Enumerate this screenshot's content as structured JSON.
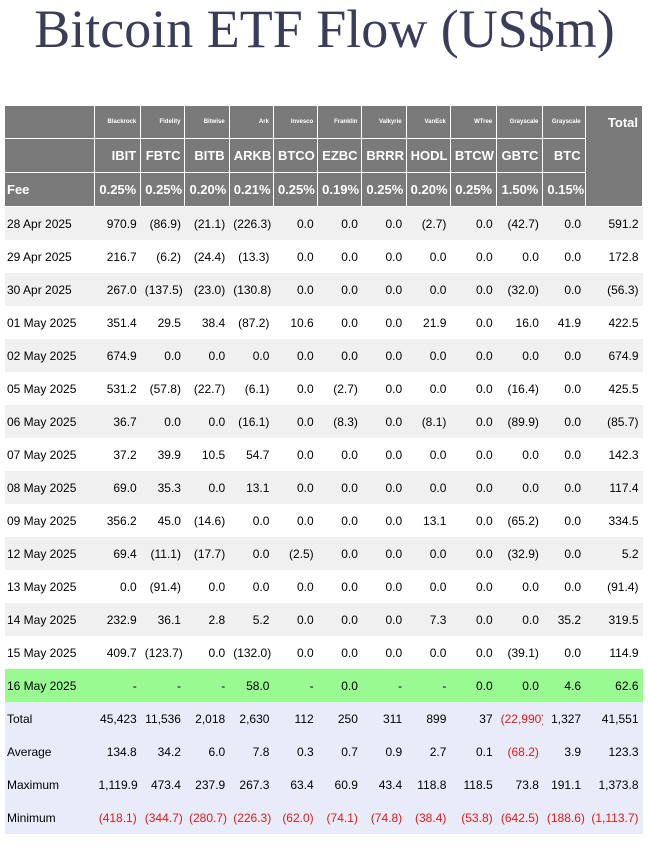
{
  "title": "Bitcoin ETF Flow (US$m)",
  "colors": {
    "header_bg": "#7a7a7a",
    "negative": "#e0191b",
    "highlight": "#98fa90",
    "stats_bg": "#e8ecf8"
  },
  "table": {
    "sponsors": [
      "Blackrock",
      "Fidelity",
      "Bitwise",
      "Ark",
      "Invesco",
      "Franklin",
      "Valkyrie",
      "VanEck",
      "WTree",
      "Grayscale",
      "Grayscale"
    ],
    "tickers": [
      "IBIT",
      "FBTC",
      "BITB",
      "ARKB",
      "BTCO",
      "EZBC",
      "BRRR",
      "HODL",
      "BTCW",
      "GBTC",
      "BTC"
    ],
    "total_label": "Total",
    "fee_label": "Fee",
    "fees": [
      "0.25%",
      "0.25%",
      "0.20%",
      "0.21%",
      "0.25%",
      "0.19%",
      "0.25%",
      "0.20%",
      "0.25%",
      "1.50%",
      "0.15%"
    ],
    "rows": [
      {
        "date": "28 Apr 2025",
        "values": [
          "970.9",
          "(86.9)",
          "(21.1)",
          "(226.3)",
          "0.0",
          "0.0",
          "0.0",
          "(2.7)",
          "0.0",
          "(42.7)",
          "0.0",
          "591.2"
        ]
      },
      {
        "date": "29 Apr 2025",
        "values": [
          "216.7",
          "(6.2)",
          "(24.4)",
          "(13.3)",
          "0.0",
          "0.0",
          "0.0",
          "0.0",
          "0.0",
          "0.0",
          "0.0",
          "172.8"
        ]
      },
      {
        "date": "30 Apr 2025",
        "values": [
          "267.0",
          "(137.5)",
          "(23.0)",
          "(130.8)",
          "0.0",
          "0.0",
          "0.0",
          "0.0",
          "0.0",
          "(32.0)",
          "0.0",
          "(56.3)"
        ]
      },
      {
        "date": "01 May 2025",
        "values": [
          "351.4",
          "29.5",
          "38.4",
          "(87.2)",
          "10.6",
          "0.0",
          "0.0",
          "21.9",
          "0.0",
          "16.0",
          "41.9",
          "422.5"
        ]
      },
      {
        "date": "02 May 2025",
        "values": [
          "674.9",
          "0.0",
          "0.0",
          "0.0",
          "0.0",
          "0.0",
          "0.0",
          "0.0",
          "0.0",
          "0.0",
          "0.0",
          "674.9"
        ]
      },
      {
        "date": "05 May 2025",
        "values": [
          "531.2",
          "(57.8)",
          "(22.7)",
          "(6.1)",
          "0.0",
          "(2.7)",
          "0.0",
          "0.0",
          "0.0",
          "(16.4)",
          "0.0",
          "425.5"
        ]
      },
      {
        "date": "06 May 2025",
        "values": [
          "36.7",
          "0.0",
          "0.0",
          "(16.1)",
          "0.0",
          "(8.3)",
          "0.0",
          "(8.1)",
          "0.0",
          "(89.9)",
          "0.0",
          "(85.7)"
        ]
      },
      {
        "date": "07 May 2025",
        "values": [
          "37.2",
          "39.9",
          "10.5",
          "54.7",
          "0.0",
          "0.0",
          "0.0",
          "0.0",
          "0.0",
          "0.0",
          "0.0",
          "142.3"
        ]
      },
      {
        "date": "08 May 2025",
        "values": [
          "69.0",
          "35.3",
          "0.0",
          "13.1",
          "0.0",
          "0.0",
          "0.0",
          "0.0",
          "0.0",
          "0.0",
          "0.0",
          "117.4"
        ]
      },
      {
        "date": "09 May 2025",
        "values": [
          "356.2",
          "45.0",
          "(14.6)",
          "0.0",
          "0.0",
          "0.0",
          "0.0",
          "13.1",
          "0.0",
          "(65.2)",
          "0.0",
          "334.5"
        ]
      },
      {
        "date": "12 May 2025",
        "values": [
          "69.4",
          "(11.1)",
          "(17.7)",
          "0.0",
          "(2.5)",
          "0.0",
          "0.0",
          "0.0",
          "0.0",
          "(32.9)",
          "0.0",
          "5.2"
        ]
      },
      {
        "date": "13 May 2025",
        "values": [
          "0.0",
          "(91.4)",
          "0.0",
          "0.0",
          "0.0",
          "0.0",
          "0.0",
          "0.0",
          "0.0",
          "0.0",
          "0.0",
          "(91.4)"
        ]
      },
      {
        "date": "14 May 2025",
        "values": [
          "232.9",
          "36.1",
          "2.8",
          "5.2",
          "0.0",
          "0.0",
          "0.0",
          "7.3",
          "0.0",
          "0.0",
          "35.2",
          "319.5"
        ]
      },
      {
        "date": "15 May 2025",
        "values": [
          "409.7",
          "(123.7)",
          "0.0",
          "(132.0)",
          "0.0",
          "0.0",
          "0.0",
          "0.0",
          "0.0",
          "(39.1)",
          "0.0",
          "114.9"
        ]
      },
      {
        "date": "16 May 2025",
        "highlight": true,
        "values": [
          "-",
          "-",
          "-",
          "58.0",
          "-",
          "0.0",
          "-",
          "-",
          "0.0",
          "0.0",
          "4.6",
          "62.6"
        ]
      }
    ],
    "stats": [
      {
        "label": "Total",
        "values": [
          "45,423",
          "11,536",
          "2,018",
          "2,630",
          "112",
          "250",
          "311",
          "899",
          "37",
          "(22,990)",
          "1,327",
          "41,551"
        ]
      },
      {
        "label": "Average",
        "values": [
          "134.8",
          "34.2",
          "6.0",
          "7.8",
          "0.3",
          "0.7",
          "0.9",
          "2.7",
          "0.1",
          "(68.2)",
          "3.9",
          "123.3"
        ]
      },
      {
        "label": "Maximum",
        "values": [
          "1,119.9",
          "473.4",
          "237.9",
          "267.3",
          "63.4",
          "60.9",
          "43.4",
          "118.8",
          "118.5",
          "73.8",
          "191.1",
          "1,373.8"
        ]
      },
      {
        "label": "Minimum",
        "values": [
          "(418.1)",
          "(344.7)",
          "(280.7)",
          "(226.3)",
          "(62.0)",
          "(74.1)",
          "(74.8)",
          "(38.4)",
          "(53.8)",
          "(642.5)",
          "(188.6)",
          "(1,113.7)"
        ]
      }
    ]
  }
}
